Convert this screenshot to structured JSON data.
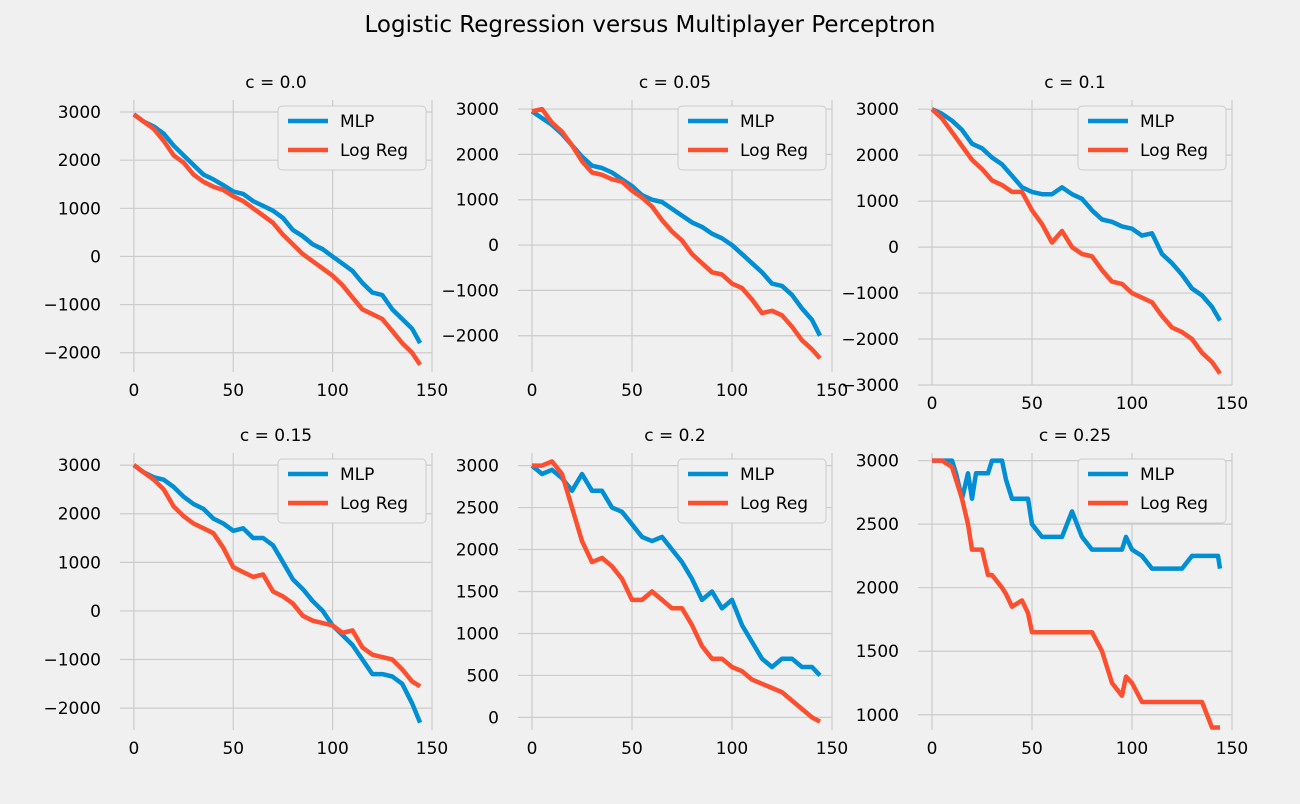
{
  "figure": {
    "title": "Logistic Regression versus Multiplayer Perceptron",
    "background": "#f0f0f0",
    "grid_color": "#cbcbcb",
    "series_colors": {
      "MLP": "#008fd5",
      "Log Reg": "#fc4f30"
    }
  },
  "chart_data": [
    {
      "type": "line",
      "title": "c = 0.0",
      "xlim": [
        -7,
        150
      ],
      "ylim": [
        -2400,
        3250
      ],
      "xticks": [
        0,
        50,
        100,
        150
      ],
      "xtick_labels": [
        "0",
        "50",
        "100",
        "150"
      ],
      "yticks": [
        -2000,
        -1000,
        0,
        1000,
        2000,
        3000
      ],
      "ytick_labels": [
        "−2000",
        "−1000",
        "0",
        "1000",
        "2000",
        "3000"
      ],
      "grid": true,
      "legend": "top-right",
      "series": [
        {
          "name": "MLP",
          "color": "#008fd5",
          "x": [
            0,
            5,
            10,
            15,
            20,
            25,
            30,
            35,
            40,
            45,
            50,
            55,
            60,
            65,
            70,
            75,
            80,
            85,
            90,
            95,
            100,
            105,
            110,
            115,
            120,
            125,
            130,
            135,
            140,
            144
          ],
          "y": [
            2950,
            2800,
            2700,
            2550,
            2300,
            2100,
            1900,
            1700,
            1600,
            1480,
            1350,
            1300,
            1150,
            1050,
            950,
            800,
            550,
            420,
            250,
            150,
            0,
            -150,
            -300,
            -550,
            -750,
            -800,
            -1100,
            -1300,
            -1500,
            -1800
          ]
        },
        {
          "name": "Log Reg",
          "color": "#fc4f30",
          "x": [
            0,
            5,
            10,
            15,
            20,
            25,
            30,
            35,
            40,
            45,
            50,
            55,
            60,
            65,
            70,
            75,
            80,
            85,
            90,
            95,
            100,
            105,
            110,
            115,
            120,
            125,
            130,
            135,
            140,
            144
          ],
          "y": [
            2950,
            2800,
            2650,
            2400,
            2100,
            1950,
            1700,
            1550,
            1450,
            1380,
            1250,
            1150,
            1000,
            850,
            700,
            450,
            250,
            50,
            -100,
            -250,
            -400,
            -600,
            -850,
            -1100,
            -1200,
            -1300,
            -1550,
            -1800,
            -2000,
            -2250
          ]
        }
      ]
    },
    {
      "type": "line",
      "title": "c = 0.05",
      "xlim": [
        -7,
        150
      ],
      "ylim": [
        -2800,
        3200
      ],
      "xticks": [
        0,
        50,
        100,
        150
      ],
      "xtick_labels": [
        "0",
        "50",
        "100",
        "150"
      ],
      "yticks": [
        -2000,
        -1000,
        0,
        1000,
        2000,
        3000
      ],
      "ytick_labels": [
        "−2000",
        "−1000",
        "0",
        "1000",
        "2000",
        "3000"
      ],
      "grid": true,
      "legend": "top-right",
      "series": [
        {
          "name": "MLP",
          "color": "#008fd5",
          "x": [
            0,
            5,
            10,
            15,
            20,
            25,
            30,
            35,
            40,
            45,
            50,
            55,
            60,
            65,
            70,
            75,
            80,
            85,
            90,
            95,
            100,
            105,
            110,
            115,
            120,
            125,
            130,
            135,
            140,
            144
          ],
          "y": [
            2950,
            2800,
            2650,
            2450,
            2200,
            1950,
            1750,
            1700,
            1600,
            1450,
            1300,
            1100,
            1000,
            950,
            800,
            650,
            500,
            400,
            250,
            150,
            0,
            -200,
            -400,
            -600,
            -850,
            -900,
            -1100,
            -1400,
            -1650,
            -2000
          ]
        },
        {
          "name": "Log Reg",
          "color": "#fc4f30",
          "x": [
            0,
            5,
            10,
            15,
            20,
            25,
            30,
            35,
            40,
            45,
            50,
            55,
            60,
            65,
            70,
            75,
            80,
            85,
            90,
            95,
            100,
            105,
            110,
            115,
            120,
            125,
            130,
            135,
            140,
            144
          ],
          "y": [
            2950,
            3000,
            2700,
            2500,
            2200,
            1850,
            1600,
            1550,
            1450,
            1400,
            1200,
            1050,
            850,
            550,
            300,
            100,
            -200,
            -400,
            -600,
            -650,
            -850,
            -950,
            -1200,
            -1500,
            -1450,
            -1550,
            -1800,
            -2100,
            -2300,
            -2500
          ]
        }
      ]
    },
    {
      "type": "line",
      "title": "c = 0.1",
      "xlim": [
        -7,
        150
      ],
      "ylim": [
        -3000,
        3200
      ],
      "xticks": [
        0,
        50,
        100,
        150
      ],
      "xtick_labels": [
        "0",
        "50",
        "100",
        "150"
      ],
      "yticks": [
        -3000,
        -2000,
        -1000,
        0,
        1000,
        2000,
        3000
      ],
      "ytick_labels": [
        "−3000",
        "−2000",
        "−1000",
        "0",
        "1000",
        "2000",
        "3000"
      ],
      "grid": true,
      "legend": "top-right",
      "series": [
        {
          "name": "MLP",
          "color": "#008fd5",
          "x": [
            0,
            5,
            10,
            15,
            20,
            25,
            30,
            35,
            40,
            45,
            50,
            55,
            60,
            65,
            70,
            75,
            80,
            85,
            90,
            95,
            100,
            105,
            110,
            115,
            120,
            125,
            130,
            135,
            140,
            144
          ],
          "y": [
            3000,
            2900,
            2750,
            2550,
            2250,
            2150,
            1950,
            1800,
            1550,
            1300,
            1200,
            1150,
            1150,
            1300,
            1150,
            1050,
            800,
            600,
            550,
            450,
            400,
            250,
            300,
            -150,
            -350,
            -600,
            -900,
            -1050,
            -1300,
            -1600
          ]
        },
        {
          "name": "Log Reg",
          "color": "#fc4f30",
          "x": [
            0,
            5,
            10,
            15,
            20,
            25,
            30,
            35,
            40,
            45,
            50,
            55,
            60,
            65,
            70,
            75,
            80,
            85,
            90,
            95,
            100,
            105,
            110,
            115,
            120,
            125,
            130,
            135,
            140,
            144
          ],
          "y": [
            3000,
            2800,
            2500,
            2200,
            1900,
            1700,
            1450,
            1350,
            1200,
            1200,
            800,
            500,
            100,
            350,
            0,
            -150,
            -200,
            -500,
            -750,
            -800,
            -1000,
            -1100,
            -1200,
            -1500,
            -1750,
            -1850,
            -2000,
            -2300,
            -2500,
            -2750
          ]
        }
      ]
    },
    {
      "type": "line",
      "title": "c = 0.15",
      "xlim": [
        -7,
        150
      ],
      "ylim": [
        -2450,
        3250
      ],
      "xticks": [
        0,
        50,
        100,
        150
      ],
      "xtick_labels": [
        "0",
        "50",
        "100",
        "150"
      ],
      "yticks": [
        -2000,
        -1000,
        0,
        1000,
        2000,
        3000
      ],
      "ytick_labels": [
        "−2000",
        "−1000",
        "0",
        "1000",
        "2000",
        "3000"
      ],
      "grid": true,
      "legend": "top-right",
      "series": [
        {
          "name": "MLP",
          "color": "#008fd5",
          "x": [
            0,
            5,
            10,
            15,
            20,
            25,
            30,
            35,
            40,
            45,
            50,
            55,
            60,
            65,
            70,
            75,
            80,
            85,
            90,
            95,
            100,
            105,
            110,
            115,
            120,
            125,
            130,
            135,
            140,
            144
          ],
          "y": [
            3000,
            2850,
            2750,
            2700,
            2550,
            2350,
            2200,
            2100,
            1900,
            1800,
            1650,
            1700,
            1500,
            1500,
            1350,
            1000,
            650,
            450,
            200,
            0,
            -300,
            -500,
            -700,
            -1000,
            -1300,
            -1300,
            -1350,
            -1500,
            -1900,
            -2300
          ]
        },
        {
          "name": "Log Reg",
          "color": "#fc4f30",
          "x": [
            0,
            5,
            10,
            15,
            20,
            25,
            30,
            35,
            40,
            45,
            50,
            55,
            60,
            65,
            70,
            75,
            80,
            85,
            90,
            95,
            100,
            105,
            110,
            115,
            120,
            125,
            130,
            135,
            140,
            144
          ],
          "y": [
            3000,
            2850,
            2700,
            2500,
            2150,
            1950,
            1800,
            1700,
            1600,
            1300,
            900,
            800,
            700,
            750,
            400,
            300,
            150,
            -100,
            -200,
            -250,
            -300,
            -450,
            -400,
            -750,
            -900,
            -950,
            -1000,
            -1200,
            -1450,
            -1550
          ]
        }
      ]
    },
    {
      "type": "line",
      "title": "c = 0.2",
      "xlim": [
        -7,
        150
      ],
      "ylim": [
        -150,
        3150
      ],
      "xticks": [
        0,
        50,
        100,
        150
      ],
      "xtick_labels": [
        "0",
        "50",
        "100",
        "150"
      ],
      "yticks": [
        0,
        500,
        1000,
        1500,
        2000,
        2500,
        3000
      ],
      "ytick_labels": [
        "0",
        "500",
        "1000",
        "1500",
        "2000",
        "2500",
        "3000"
      ],
      "grid": true,
      "legend": "top-right",
      "series": [
        {
          "name": "MLP",
          "color": "#008fd5",
          "x": [
            0,
            5,
            10,
            15,
            20,
            25,
            30,
            35,
            40,
            45,
            50,
            55,
            60,
            65,
            70,
            75,
            80,
            85,
            90,
            95,
            100,
            105,
            110,
            115,
            120,
            125,
            130,
            135,
            140,
            144
          ],
          "y": [
            3000,
            2900,
            2950,
            2850,
            2700,
            2900,
            2700,
            2700,
            2500,
            2450,
            2300,
            2150,
            2100,
            2150,
            2000,
            1850,
            1650,
            1400,
            1500,
            1300,
            1400,
            1100,
            900,
            700,
            600,
            700,
            700,
            600,
            600,
            500
          ]
        },
        {
          "name": "Log Reg",
          "color": "#fc4f30",
          "x": [
            0,
            5,
            10,
            15,
            20,
            25,
            30,
            35,
            40,
            45,
            50,
            55,
            60,
            65,
            70,
            75,
            80,
            85,
            90,
            95,
            100,
            105,
            110,
            115,
            120,
            125,
            130,
            135,
            140,
            144
          ],
          "y": [
            3000,
            3000,
            3050,
            2900,
            2500,
            2100,
            1850,
            1900,
            1800,
            1650,
            1400,
            1400,
            1500,
            1400,
            1300,
            1300,
            1100,
            850,
            700,
            700,
            600,
            550,
            450,
            400,
            350,
            300,
            200,
            100,
            0,
            -50
          ]
        }
      ]
    },
    {
      "type": "line",
      "title": "c = 0.25",
      "xlim": [
        -7,
        150
      ],
      "ylim": [
        880,
        3060
      ],
      "xticks": [
        0,
        50,
        100,
        150
      ],
      "xtick_labels": [
        "0",
        "50",
        "100",
        "150"
      ],
      "yticks": [
        1000,
        1500,
        2000,
        2500,
        3000
      ],
      "ytick_labels": [
        "1000",
        "1500",
        "2000",
        "2500",
        "3000"
      ],
      "grid": true,
      "legend": "top-right",
      "series": [
        {
          "name": "MLP",
          "color": "#008fd5",
          "x": [
            0,
            5,
            10,
            12,
            15,
            18,
            20,
            22,
            25,
            28,
            30,
            35,
            37,
            40,
            45,
            48,
            50,
            55,
            60,
            65,
            70,
            75,
            80,
            85,
            90,
            95,
            97,
            100,
            105,
            110,
            115,
            120,
            125,
            130,
            135,
            140,
            143,
            144
          ],
          "y": [
            3000,
            3000,
            3000,
            2900,
            2700,
            2900,
            2700,
            2900,
            2900,
            2900,
            3000,
            3000,
            2850,
            2700,
            2700,
            2700,
            2500,
            2400,
            2400,
            2400,
            2600,
            2400,
            2300,
            2300,
            2300,
            2300,
            2400,
            2300,
            2250,
            2150,
            2150,
            2150,
            2150,
            2250,
            2250,
            2250,
            2250,
            2150
          ]
        },
        {
          "name": "Log Reg",
          "color": "#fc4f30",
          "x": [
            0,
            5,
            10,
            12,
            15,
            18,
            20,
            22,
            25,
            28,
            30,
            35,
            37,
            40,
            45,
            48,
            50,
            55,
            60,
            65,
            70,
            75,
            80,
            85,
            90,
            95,
            97,
            100,
            105,
            110,
            115,
            120,
            125,
            130,
            135,
            140,
            143,
            144
          ],
          "y": [
            3000,
            3000,
            2950,
            2850,
            2700,
            2500,
            2300,
            2300,
            2300,
            2100,
            2100,
            2000,
            1950,
            1850,
            1900,
            1800,
            1650,
            1650,
            1650,
            1650,
            1650,
            1650,
            1650,
            1500,
            1250,
            1150,
            1300,
            1250,
            1100,
            1100,
            1100,
            1100,
            1100,
            1100,
            1100,
            900,
            900,
            900
          ]
        }
      ]
    }
  ]
}
